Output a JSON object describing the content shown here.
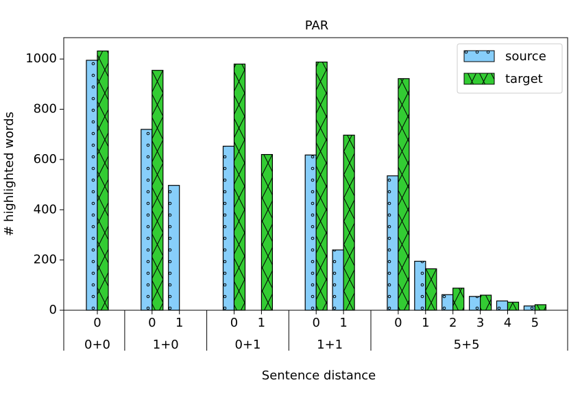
{
  "chart_data": {
    "type": "bar",
    "title": "PAR",
    "x_label": "Sentence distance",
    "y_label": "# highlighted words",
    "groups": [
      {
        "name": "0+0",
        "categories": [
          "0"
        ]
      },
      {
        "name": "1+0",
        "categories": [
          "0",
          "1"
        ]
      },
      {
        "name": "0+1",
        "categories": [
          "0",
          "1"
        ]
      },
      {
        "name": "1+1",
        "categories": [
          "0",
          "1"
        ]
      },
      {
        "name": "5+5",
        "categories": [
          "0",
          "1",
          "2",
          "3",
          "4",
          "5"
        ]
      }
    ],
    "series": [
      {
        "name": "source",
        "color": "#87cefa",
        "hatch": "dots",
        "values": [
          995,
          720,
          497,
          653,
          null,
          618,
          240,
          535,
          195,
          62,
          55,
          37,
          17
        ]
      },
      {
        "name": "target",
        "color": "#33cc33",
        "hatch": "cross",
        "values": [
          1032,
          955,
          null,
          980,
          620,
          988,
          697,
          922,
          165,
          88,
          60,
          32,
          22
        ]
      }
    ],
    "ylim": [
      0,
      1085
    ],
    "yticks": [
      0,
      200,
      400,
      600,
      800,
      1000
    ],
    "legend": "upper right"
  }
}
